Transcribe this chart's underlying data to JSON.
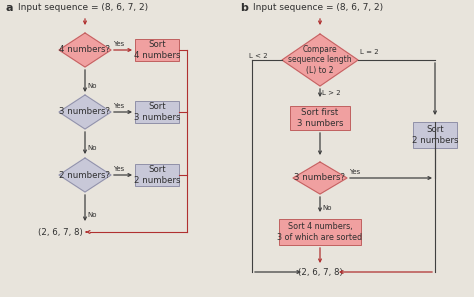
{
  "bg_color": "#e8e4dc",
  "pink_fill": "#f0a0a0",
  "pink_border": "#c06060",
  "pink_fill2": "#f5b8b8",
  "gray_fill": "#c8c8d8",
  "gray_border": "#9090a8",
  "red_arrow": "#b03030",
  "dark_arrow": "#404040",
  "text_color": "#303030",
  "label_a": "a",
  "label_b": "b",
  "title_text": "Input sequence = (8, 6, 7, 2)",
  "font_size": 6.5
}
